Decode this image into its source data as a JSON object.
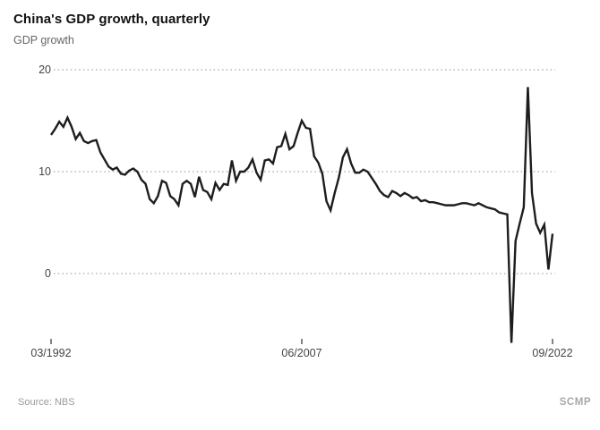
{
  "header": {
    "title": "China's GDP growth, quarterly",
    "subtitle": "GDP growth"
  },
  "footer": {
    "source": "Source: NBS",
    "brand": "SCMP"
  },
  "colors": {
    "line": "#1d1d1d",
    "grid": "#a6a6a6",
    "axis_text": "#444444",
    "title_text": "#111111",
    "subtitle_text": "#666666",
    "footer_text": "#9b9b9b"
  },
  "chart_data": {
    "type": "line",
    "title": "China's GDP growth, quarterly",
    "series_name": "GDP growth",
    "frequency": "quarterly",
    "start_period": "03/1992",
    "end_period": "09/2022",
    "xticks": [
      "03/1992",
      "06/2007",
      "09/2022"
    ],
    "xtick_indices": [
      0,
      61,
      122
    ],
    "ytick_labels": [
      "20",
      "10",
      "0"
    ],
    "yticks": [
      20,
      10,
      0
    ],
    "ylim": [
      -8,
      21
    ],
    "grid": "horizontal-dotted",
    "legend": "none",
    "values": [
      13.6,
      14.2,
      14.9,
      14.4,
      15.3,
      14.4,
      13.2,
      13.8,
      13.0,
      12.8,
      13.0,
      13.1,
      11.9,
      11.2,
      10.5,
      10.2,
      10.4,
      9.8,
      9.7,
      10.1,
      10.3,
      10.0,
      9.2,
      8.8,
      7.3,
      6.9,
      7.6,
      9.1,
      8.9,
      7.6,
      7.3,
      6.7,
      8.8,
      9.1,
      8.8,
      7.5,
      9.5,
      8.2,
      8.0,
      7.3,
      8.9,
      8.2,
      8.8,
      8.7,
      11.1,
      9.1,
      10.0,
      10.0,
      10.4,
      11.2,
      9.9,
      9.2,
      11.1,
      11.2,
      10.8,
      12.4,
      12.5,
      13.7,
      12.2,
      12.5,
      13.8,
      15.0,
      14.3,
      14.2,
      11.5,
      10.9,
      9.8,
      7.1,
      6.2,
      7.9,
      9.4,
      11.4,
      12.2,
      10.8,
      9.9,
      9.9,
      10.2,
      10.0,
      9.4,
      8.8,
      8.1,
      7.7,
      7.5,
      8.1,
      7.9,
      7.6,
      7.9,
      7.7,
      7.4,
      7.5,
      7.1,
      7.2,
      7.0,
      7.0,
      6.9,
      6.8,
      6.7,
      6.7,
      6.7,
      6.8,
      6.9,
      6.9,
      6.8,
      6.7,
      6.9,
      6.7,
      6.5,
      6.4,
      6.3,
      6.0,
      5.9,
      5.8,
      -6.8,
      3.2,
      4.9,
      6.5,
      18.3,
      7.9,
      4.9,
      4.0,
      4.8,
      0.4,
      3.9
    ]
  }
}
